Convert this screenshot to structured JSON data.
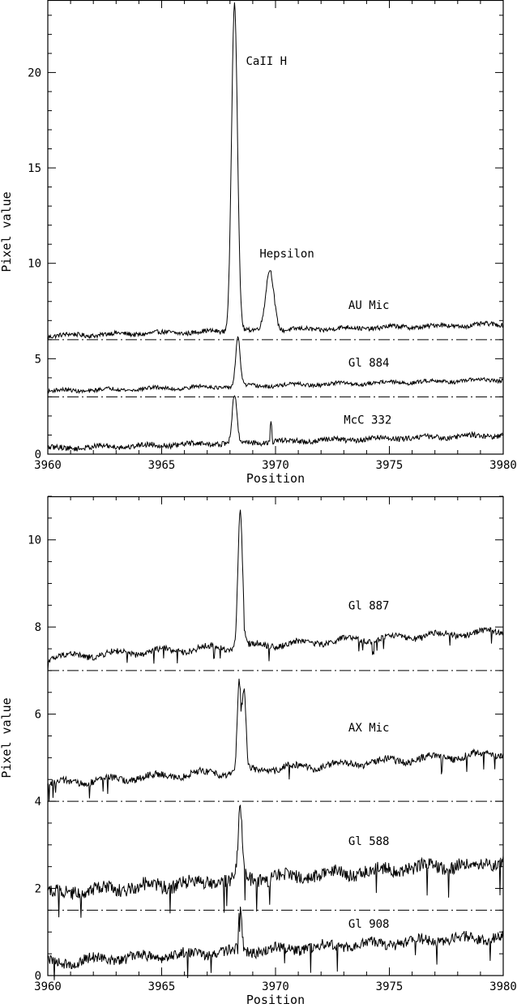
{
  "chart_data": [
    {
      "type": "line",
      "xlabel": "Position",
      "ylabel": "Pixel value",
      "xlim": [
        3960,
        3980
      ],
      "ylim": [
        0,
        23.8
      ],
      "xticks": [
        3960,
        3965,
        3970,
        3975,
        3980
      ],
      "yticks": [
        0,
        5,
        10,
        15,
        20
      ],
      "xtick_labels": [
        "3960",
        "3965",
        "3970",
        "3975",
        "3980"
      ],
      "ytick_labels": [
        "0",
        "5",
        "10",
        "15",
        "20"
      ],
      "baselines": [
        6.0,
        3.0
      ],
      "annotations": [
        {
          "text": "CaII H",
          "x": 3968.7,
          "y": 20.4
        },
        {
          "text": "Hepsilon",
          "x": 3969.3,
          "y": 10.3
        }
      ],
      "series": [
        {
          "name": "AU Mic",
          "label_x": 3973.2,
          "label_y": 7.6,
          "continuum": [
            6.2,
            6.8
          ],
          "noise": 0.12,
          "peaks": [
            {
              "x": 3968.2,
              "h": 17.3,
              "w": 0.13
            },
            {
              "x": 3969.75,
              "h": 3.2,
              "w": 0.18
            }
          ]
        },
        {
          "name": "Gl 884",
          "label_x": 3973.2,
          "label_y": 4.6,
          "continuum": [
            3.3,
            3.9
          ],
          "noise": 0.1,
          "peaks": [
            {
              "x": 3968.35,
              "h": 2.5,
              "w": 0.1
            }
          ]
        },
        {
          "name": "McC 332",
          "label_x": 3973.0,
          "label_y": 1.6,
          "continuum": [
            0.3,
            1.0
          ],
          "noise": 0.14,
          "peaks": [
            {
              "x": 3968.2,
              "h": 2.5,
              "w": 0.1
            },
            {
              "x": 3969.8,
              "h": 1.2,
              "w": 0.03
            }
          ]
        }
      ]
    },
    {
      "type": "line",
      "xlabel": "Position",
      "ylabel": "Pixel value",
      "xlim": [
        3960,
        3980
      ],
      "ylim": [
        0,
        11.0
      ],
      "xticks": [
        3960,
        3965,
        3970,
        3975,
        3980
      ],
      "yticks": [
        0,
        2,
        4,
        6,
        8,
        10
      ],
      "xtick_labels": [
        "3960",
        "3965",
        "3970",
        "3975",
        "3980"
      ],
      "ytick_labels": [
        "0",
        "2",
        "4",
        "6",
        "8",
        "10"
      ],
      "baselines": [
        7.0,
        4.0,
        1.5
      ],
      "series": [
        {
          "name": "Gl 887",
          "label_x": 3973.2,
          "label_y": 8.4,
          "continuum": [
            7.3,
            7.9
          ],
          "noise": 0.07,
          "peaks": [
            {
              "x": 3968.45,
              "h": 3.1,
              "w": 0.1
            }
          ]
        },
        {
          "name": "AX Mic",
          "label_x": 3973.2,
          "label_y": 5.6,
          "continuum": [
            4.4,
            5.1
          ],
          "noise": 0.08,
          "peaks": [
            {
              "x": 3968.4,
              "h": 2.0,
              "w": 0.08
            },
            {
              "x": 3968.62,
              "h": 1.8,
              "w": 0.08
            }
          ]
        },
        {
          "name": "Gl 588",
          "label_x": 3973.2,
          "label_y": 3.0,
          "continuum": [
            1.9,
            2.6
          ],
          "noise": 0.16,
          "peaks": [
            {
              "x": 3968.45,
              "h": 1.6,
              "w": 0.09
            }
          ]
        },
        {
          "name": "Gl 908",
          "label_x": 3973.2,
          "label_y": 1.1,
          "continuum": [
            0.3,
            0.9
          ],
          "noise": 0.12,
          "peaks": [
            {
              "x": 3968.45,
              "h": 1.0,
              "w": 0.07
            }
          ]
        }
      ]
    }
  ]
}
